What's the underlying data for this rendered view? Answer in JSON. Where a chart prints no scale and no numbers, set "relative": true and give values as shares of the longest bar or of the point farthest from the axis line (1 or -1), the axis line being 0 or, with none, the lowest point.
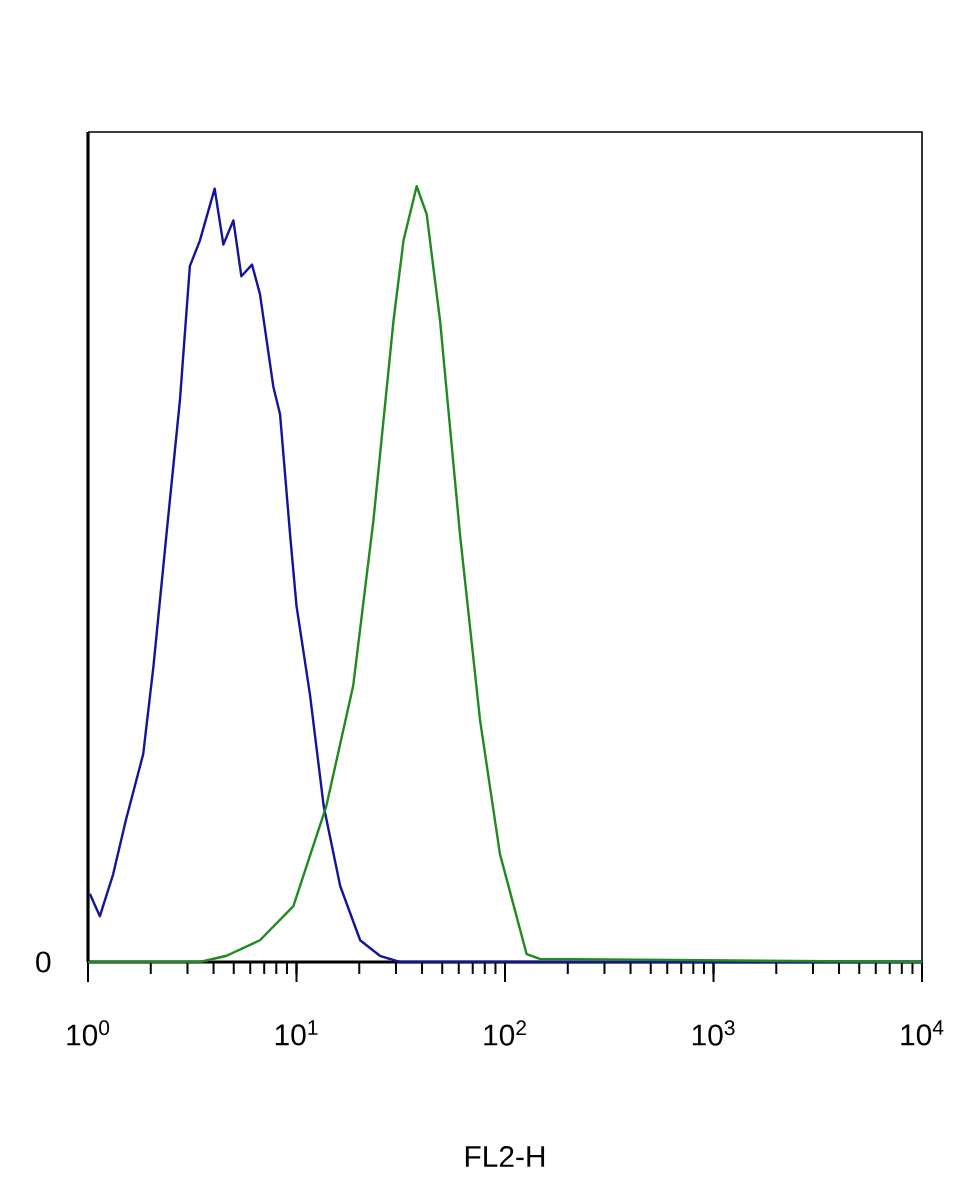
{
  "chart_data": {
    "type": "line",
    "xlabel": "FL2-H",
    "log": "x",
    "relative": true,
    "grid": false,
    "marker": "none",
    "tick_labels": "x",
    "xlim": [
      1,
      10000
    ],
    "xticks": [
      {
        "value": 1,
        "label": "10$^{0}$"
      },
      {
        "value": 10,
        "label": "10$^{1}$"
      },
      {
        "value": 100,
        "label": "10$^{2}$"
      },
      {
        "value": 1000,
        "label": "10$^{3}$"
      },
      {
        "value": 10000,
        "label": "10$^{4}$"
      }
    ],
    "annotations": [
      "0"
    ],
    "series": [
      {
        "color": "#14149a",
        "x": [
          1.02,
          1.14,
          1.32,
          1.52,
          1.84,
          2.06,
          2.38,
          2.76,
          3.08,
          3.44,
          4.05,
          4.46,
          4.98,
          5.44,
          6.12,
          6.68,
          7.74,
          8.34,
          9.31,
          10.0,
          11.6,
          13.5,
          16.2,
          20.2,
          25.1,
          31.3,
          10000
        ],
        "values": [
          0.088,
          0.059,
          0.113,
          0.183,
          0.268,
          0.381,
          0.552,
          0.724,
          0.897,
          0.93,
          0.997,
          0.925,
          0.956,
          0.884,
          0.899,
          0.861,
          0.742,
          0.706,
          0.552,
          0.459,
          0.345,
          0.201,
          0.098,
          0.028,
          0.008,
          0,
          0
        ]
      },
      {
        "color": "#1f8a1f",
        "x": [
          1,
          3.44,
          4.62,
          6.68,
          9.66,
          13.9,
          18.7,
          23.4,
          29.2,
          32.6,
          37.7,
          42.1,
          48.8,
          60.8,
          75.9,
          94.6,
          127,
          147,
          10000
        ],
        "values": [
          0,
          0,
          0.008,
          0.028,
          0.072,
          0.201,
          0.356,
          0.57,
          0.827,
          0.93,
          1,
          0.964,
          0.827,
          0.552,
          0.312,
          0.139,
          0.01,
          0.004,
          0
        ]
      }
    ]
  }
}
